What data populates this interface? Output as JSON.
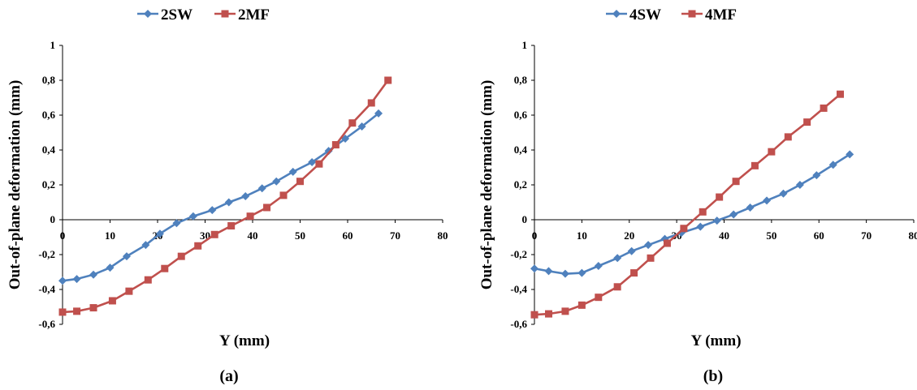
{
  "chart_data": [
    {
      "type": "line",
      "caption": "(a)",
      "xlabel": "Y (mm)",
      "ylabel": "Out-of-plane deformation (mm)",
      "xlim": [
        0,
        80
      ],
      "ylim": [
        -0.6,
        1
      ],
      "x_ticks": [
        "0",
        "10",
        "20",
        "30",
        "40",
        "50",
        "60",
        "70",
        "80"
      ],
      "y_ticks": [
        "-0,6",
        "-0,4",
        "-0,2",
        "0",
        "0,2",
        "0,4",
        "0,6",
        "0,8",
        "1"
      ],
      "grid": false,
      "legend_position": "top",
      "series": [
        {
          "name": "2SW",
          "color": "#4f81bd",
          "marker": "diamond",
          "x": [
            0,
            3,
            6.5,
            10,
            13.5,
            17.5,
            20.5,
            24,
            27.5,
            31.5,
            35,
            38.5,
            42,
            45,
            48.5,
            52.5,
            56,
            59.5,
            63,
            66.5
          ],
          "y": [
            -0.35,
            -0.34,
            -0.315,
            -0.275,
            -0.21,
            -0.145,
            -0.08,
            -0.02,
            0.02,
            0.055,
            0.1,
            0.135,
            0.18,
            0.22,
            0.275,
            0.33,
            0.395,
            0.465,
            0.535,
            0.61
          ]
        },
        {
          "name": "2MF",
          "color": "#c0504d",
          "marker": "square",
          "x": [
            0,
            3,
            6.5,
            10.5,
            14,
            18,
            21.5,
            25,
            28.5,
            32,
            35.5,
            39.5,
            43,
            46.5,
            50,
            54,
            57.5,
            61,
            65,
            68.5
          ],
          "y": [
            -0.53,
            -0.525,
            -0.505,
            -0.465,
            -0.41,
            -0.345,
            -0.28,
            -0.21,
            -0.15,
            -0.085,
            -0.035,
            0.02,
            0.07,
            0.14,
            0.22,
            0.32,
            0.43,
            0.555,
            0.67,
            0.8
          ]
        }
      ]
    },
    {
      "type": "line",
      "caption": "(b)",
      "xlabel": "Y (mm)",
      "ylabel": "Out-of-plane deformation (mm)",
      "xlim": [
        0,
        80
      ],
      "ylim": [
        -0.6,
        1
      ],
      "x_ticks": [
        "0",
        "10",
        "20",
        "30",
        "40",
        "50",
        "60",
        "70",
        "80"
      ],
      "y_ticks": [
        "-0,6",
        "-0,4",
        "-0,2",
        "0",
        "0,2",
        "0,4",
        "0,6",
        "0,8",
        "1"
      ],
      "grid": false,
      "legend_position": "top",
      "series": [
        {
          "name": "4SW",
          "color": "#4f81bd",
          "marker": "diamond",
          "x": [
            0,
            3,
            6.5,
            10,
            13.5,
            17.5,
            20.5,
            24,
            27.5,
            31,
            35,
            38.5,
            42,
            45.5,
            49,
            52.5,
            56,
            59.5,
            63,
            66.5
          ],
          "y": [
            -0.28,
            -0.295,
            -0.31,
            -0.305,
            -0.265,
            -0.22,
            -0.18,
            -0.145,
            -0.11,
            -0.075,
            -0.04,
            -0.005,
            0.03,
            0.07,
            0.11,
            0.15,
            0.2,
            0.255,
            0.315,
            0.375
          ]
        },
        {
          "name": "4MF",
          "color": "#c0504d",
          "marker": "square",
          "x": [
            0,
            3,
            6.5,
            10,
            13.5,
            17.5,
            21,
            24.5,
            28,
            31.5,
            35.5,
            39,
            42.5,
            46.5,
            50,
            53.5,
            57.5,
            61,
            64.5
          ],
          "y": [
            -0.545,
            -0.54,
            -0.525,
            -0.49,
            -0.445,
            -0.385,
            -0.305,
            -0.22,
            -0.135,
            -0.05,
            0.045,
            0.13,
            0.22,
            0.31,
            0.39,
            0.475,
            0.56,
            0.64,
            0.72
          ]
        }
      ]
    }
  ]
}
